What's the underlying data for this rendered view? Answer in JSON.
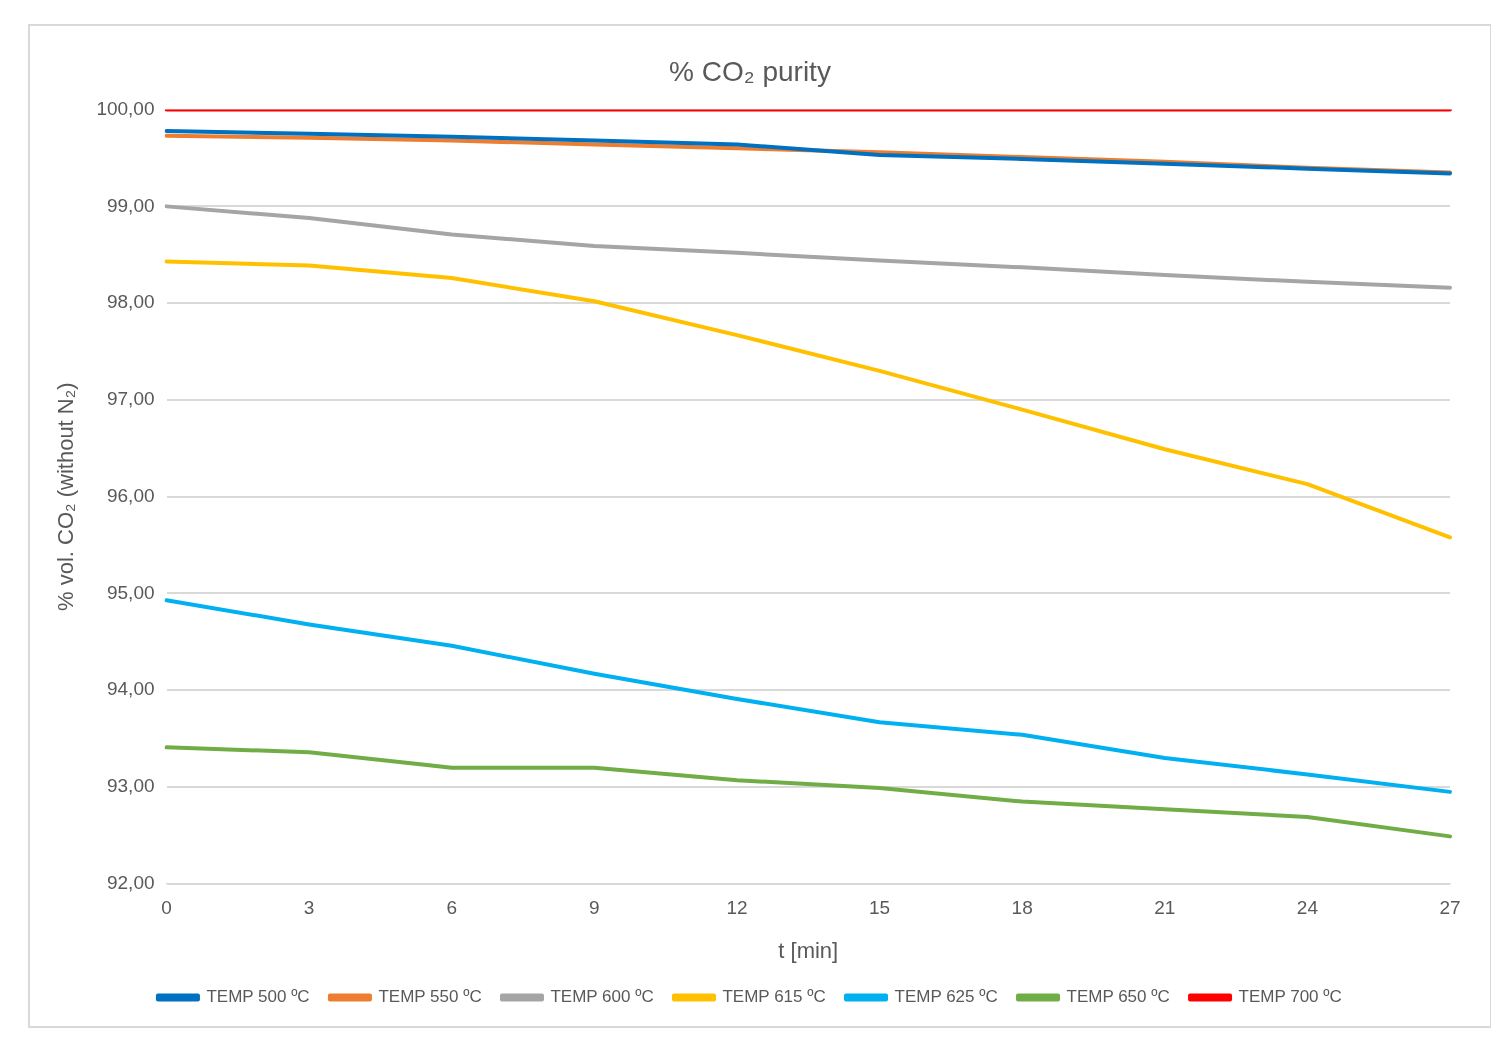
{
  "chart_data": {
    "type": "line",
    "title": "% CO₂ purity",
    "xlabel": "t [min]",
    "ylabel": "% vol. CO₂ (without N₂)",
    "categories": [
      "0",
      "3",
      "6",
      "9",
      "12",
      "15",
      "18",
      "21",
      "24",
      "27"
    ],
    "ylim": [
      92,
      100
    ],
    "yticks": [
      {
        "value": 92,
        "label": "92,00"
      },
      {
        "value": 93,
        "label": "93,00"
      },
      {
        "value": 94,
        "label": "94,00"
      },
      {
        "value": 95,
        "label": "95,00"
      },
      {
        "value": 96,
        "label": "96,00"
      },
      {
        "value": 97,
        "label": "97,00"
      },
      {
        "value": 98,
        "label": "98,00"
      },
      {
        "value": 99,
        "label": "99,00"
      },
      {
        "value": 100,
        "label": "100,00"
      }
    ],
    "grid": "y",
    "legend": "bottom",
    "marker": "none",
    "line_style": "solid",
    "series": [
      {
        "name": "TEMP 500 ºC",
        "color": "#0070c0",
        "values": [
          99.78,
          99.75,
          99.72,
          99.68,
          99.64,
          99.53,
          99.49,
          99.44,
          99.39,
          99.34
        ]
      },
      {
        "name": "TEMP 550 ºC",
        "color": "#ed7d31",
        "values": [
          99.73,
          99.71,
          99.68,
          99.64,
          99.6,
          99.56,
          99.51,
          99.46,
          99.4,
          99.35
        ]
      },
      {
        "name": "TEMP 600 ºC",
        "color": "#a5a5a5",
        "values": [
          99.0,
          98.88,
          98.71,
          98.59,
          98.52,
          98.44,
          98.37,
          98.29,
          98.22,
          98.16
        ]
      },
      {
        "name": "TEMP 615 ºC",
        "color": "#ffc000",
        "values": [
          98.43,
          98.39,
          98.26,
          98.02,
          97.67,
          97.3,
          96.9,
          96.49,
          96.13,
          95.58
        ]
      },
      {
        "name": "TEMP 625 ºC",
        "color": "#00b0f0",
        "values": [
          94.93,
          94.68,
          94.46,
          94.17,
          93.91,
          93.67,
          93.54,
          93.3,
          93.13,
          92.95
        ]
      },
      {
        "name": "TEMP 650 ºC",
        "color": "#70ad47",
        "values": [
          93.41,
          93.36,
          93.2,
          93.2,
          93.07,
          92.99,
          92.85,
          92.77,
          92.69,
          92.49
        ]
      },
      {
        "name": "TEMP 700 ºC",
        "color": "#ff0000",
        "values": [
          100,
          100,
          100,
          100,
          100,
          100,
          100,
          100,
          100,
          100
        ]
      }
    ]
  }
}
